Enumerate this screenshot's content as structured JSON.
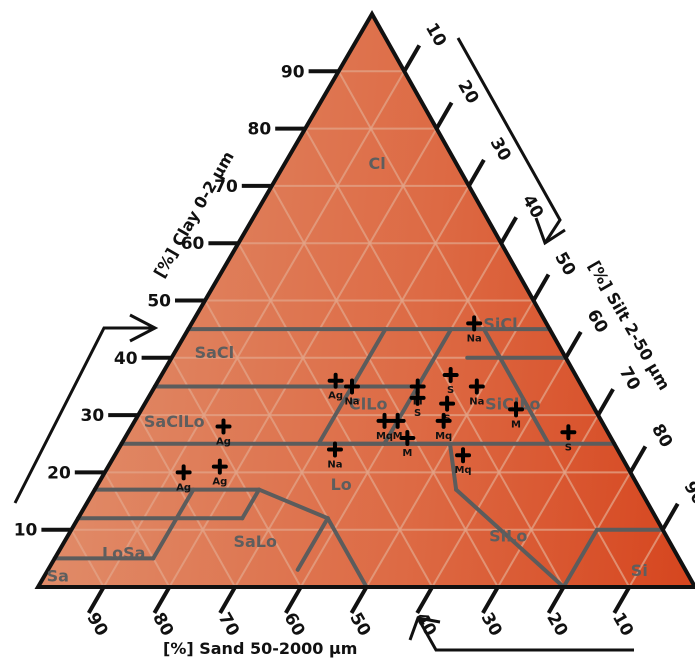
{
  "chart_data": {
    "type": "scatter",
    "subtype": "ternary soil texture triangle",
    "axes": {
      "clay": {
        "label": "[%] Clay 0-2 μm",
        "ticks": [
          10,
          20,
          30,
          40,
          50,
          60,
          70,
          80,
          90
        ]
      },
      "silt": {
        "label": "[%] Silt 2-50 μm",
        "ticks": [
          10,
          20,
          30,
          40,
          50,
          60,
          70,
          80,
          90
        ]
      },
      "sand": {
        "label": "[%] Sand 50-2000 μm",
        "ticks": [
          90,
          80,
          70,
          60,
          50,
          40,
          30,
          20,
          10
        ]
      }
    },
    "grid": true,
    "colors": {
      "fill_light": "#e08a67",
      "fill_dark": "#d6461f",
      "grid": "#e3a488",
      "border": "#111111",
      "boundary": "#5c5c5c",
      "point": "#000000",
      "region_text": "#5e5e5e"
    },
    "regions": [
      {
        "code": "Cl",
        "clay": 74,
        "silt": 14
      },
      {
        "code": "SiCl",
        "clay": 46,
        "silt": 47
      },
      {
        "code": "SaCl",
        "clay": 41,
        "silt": 6
      },
      {
        "code": "ClLo",
        "clay": 32,
        "silt": 34
      },
      {
        "code": "SiClLo",
        "clay": 32,
        "silt": 56
      },
      {
        "code": "SaClLo",
        "clay": 29,
        "silt": 6
      },
      {
        "code": "Lo",
        "clay": 18,
        "silt": 37
      },
      {
        "code": "SiLo",
        "clay": 9,
        "silt": 67
      },
      {
        "code": "SaLo",
        "clay": 8,
        "silt": 29
      },
      {
        "code": "LoSa",
        "clay": 6,
        "silt": 10
      },
      {
        "code": "Sa",
        "clay": 2,
        "silt": 2
      },
      {
        "code": "Si",
        "clay": 3,
        "silt": 90
      }
    ],
    "points": [
      {
        "label": "Na",
        "clay": 46,
        "silt": 43
      },
      {
        "label": "Ag",
        "clay": 36,
        "silt": 27
      },
      {
        "label": "Na",
        "clay": 35,
        "silt": 30
      },
      {
        "label": "S",
        "clay": 37,
        "silt": 44
      },
      {
        "label": "M",
        "clay": 35,
        "silt": 40
      },
      {
        "label": "Na",
        "clay": 35,
        "silt": 49
      },
      {
        "label": "S",
        "clay": 32,
        "silt": 46
      },
      {
        "label": "S",
        "clay": 33,
        "silt": 41
      },
      {
        "label": "Mq",
        "clay": 29,
        "silt": 38
      },
      {
        "label": "M",
        "clay": 29,
        "silt": 40
      },
      {
        "label": "Mq",
        "clay": 29,
        "silt": 47
      },
      {
        "label": "M",
        "clay": 31,
        "silt": 57
      },
      {
        "label": "M",
        "clay": 26,
        "silt": 43
      },
      {
        "label": "S",
        "clay": 27,
        "silt": 67
      },
      {
        "label": "Ag",
        "clay": 28,
        "silt": 14
      },
      {
        "label": "Na",
        "clay": 24,
        "silt": 33
      },
      {
        "label": "Mq",
        "clay": 23,
        "silt": 53
      },
      {
        "label": "Ag",
        "clay": 20,
        "silt": 12
      },
      {
        "label": "Ag",
        "clay": 21,
        "silt": 17
      }
    ]
  }
}
